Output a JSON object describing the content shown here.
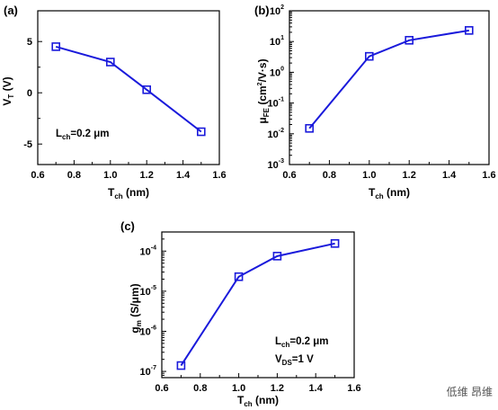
{
  "chart_data": [
    {
      "type": "line",
      "panel": "(a)",
      "x": [
        0.7,
        1.0,
        1.2,
        1.5
      ],
      "series": [
        {
          "values": [
            4.5,
            3.0,
            0.3,
            -3.8
          ]
        }
      ],
      "xlim": [
        0.6,
        1.6
      ],
      "ylim": [
        -7,
        8
      ],
      "yscale": "linear",
      "xticks": [
        "0.6",
        "0.8",
        "1.0",
        "1.2",
        "1.4",
        "1.6"
      ],
      "yticks": [
        "5",
        "0",
        "-5"
      ],
      "xlabel": {
        "main": "T",
        "sub": "ch",
        "rest": " (nm)"
      },
      "ylabel": {
        "main": "V",
        "sub": "T",
        "rest": " (V)"
      },
      "annotations": [
        {
          "main": "L",
          "sub": "ch",
          "rest": "=0.2 μm"
        }
      ]
    },
    {
      "type": "line",
      "panel": "(b)",
      "x": [
        0.7,
        1.0,
        1.2,
        1.5
      ],
      "series": [
        {
          "values": [
            0.015,
            3.3,
            11,
            23
          ]
        }
      ],
      "xlim": [
        0.6,
        1.6
      ],
      "ylim": [
        0.001,
        100
      ],
      "yscale": "log",
      "xticks": [
        "0.6",
        "0.8",
        "1.0",
        "1.2",
        "1.4",
        "1.6"
      ],
      "yticks": [
        {
          "base": "10",
          "exp": "2"
        },
        {
          "base": "10",
          "exp": "1"
        },
        {
          "base": "10",
          "exp": "0"
        },
        {
          "base": "10",
          "exp": "-1"
        },
        {
          "base": "10",
          "exp": "-2"
        },
        {
          "base": "10",
          "exp": "-3"
        }
      ],
      "xlabel": {
        "main": "T",
        "sub": "ch",
        "rest": " (nm)"
      },
      "ylabel": {
        "main": "μ",
        "sub": "FE",
        "rest": " (cm",
        "sup": "2",
        "rest2": "/V·s)"
      }
    },
    {
      "type": "line",
      "panel": "(c)",
      "x": [
        0.7,
        1.0,
        1.2,
        1.5
      ],
      "series": [
        {
          "values": [
            1.4e-07,
            2.3e-05,
            7.5e-05,
            0.000155
          ]
        }
      ],
      "xlim": [
        0.6,
        1.6
      ],
      "ylim": [
        7e-08,
        0.0003
      ],
      "yscale": "log",
      "xticks": [
        "0.6",
        "0.8",
        "1.0",
        "1.2",
        "1.4",
        "1.6"
      ],
      "yticks": [
        {
          "base": "10",
          "exp": "-4"
        },
        {
          "base": "10",
          "exp": "-5"
        },
        {
          "base": "10",
          "exp": "-6"
        },
        {
          "base": "10",
          "exp": "-7"
        }
      ],
      "xlabel": {
        "main": "T",
        "sub": "ch",
        "rest": " (nm)"
      },
      "ylabel": {
        "main": "g",
        "sub": "m",
        "rest": " (S/μm)"
      },
      "annotations": [
        {
          "main": "L",
          "sub": "ch",
          "rest": "=0.2 μm"
        },
        {
          "main": "V",
          "sub": "DS",
          "rest": "=1 V"
        }
      ]
    }
  ],
  "colors": {
    "series": "#1a1adb"
  },
  "watermark": "低维 昂维"
}
